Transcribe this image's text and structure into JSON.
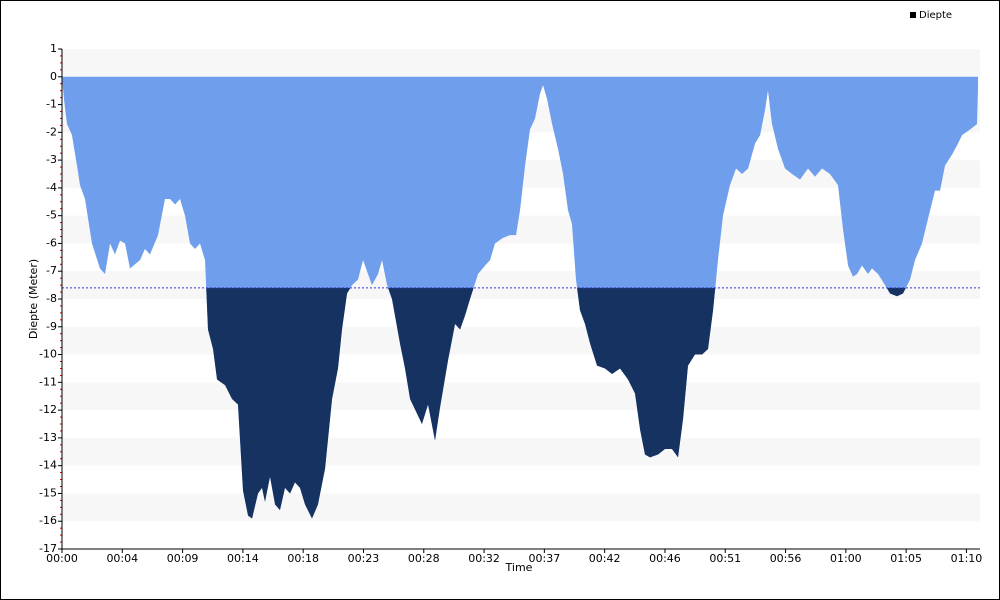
{
  "chart_data": {
    "type": "area",
    "x_label": "Time",
    "y_label": "Diepte (Meter)",
    "x": [
      0,
      0.15,
      0.39,
      0.77,
      1.16,
      1.39,
      1.78,
      2.32,
      2.94,
      3.33,
      3.72,
      4.1,
      4.49,
      4.88,
      5.26,
      6.04,
      6.42,
      6.81,
      7.43,
      7.97,
      8.36,
      8.75,
      9.13,
      9.52,
      9.91,
      10.29,
      10.68,
      11.07,
      11.3,
      11.69,
      12.0,
      12.62,
      13.16,
      13.62,
      14.01,
      14.4,
      14.71,
      15.17,
      15.48,
      15.71,
      16.1,
      16.49,
      16.87,
      17.26,
      17.65,
      18.03,
      18.42,
      18.81,
      19.35,
      19.81,
      20.36,
      20.9,
      21.36,
      21.67,
      22.06,
      22.45,
      22.91,
      23.3,
      23.68,
      23.99,
      24.46,
      24.77,
      25.16,
      25.54,
      26.16,
      26.55,
      26.94,
      27.55,
      27.86,
      28.33,
      28.87,
      29.26,
      29.88,
      30.42,
      30.81,
      31.19,
      31.58,
      32.2,
      32.74,
      33.13,
      33.51,
      34.13,
      34.68,
      35.14,
      35.45,
      35.84,
      36.22,
      36.61,
      37.0,
      37.23,
      37.54,
      37.93,
      38.39,
      38.78,
      39.16,
      39.47,
      39.78,
      40.09,
      40.48,
      40.87,
      41.41,
      42.03,
      42.57,
      43.19,
      43.81,
      44.35,
      44.74,
      45.12,
      45.51,
      46.13,
      46.67,
      47.21,
      47.68,
      48.07,
      48.45,
      48.99,
      49.54,
      50.0,
      50.39,
      50.77,
      51.16,
      51.7,
      52.17,
      52.63,
      53.1,
      53.64,
      54.03,
      54.41,
      54.64,
      54.95,
      55.42,
      55.96,
      56.5,
      57.12,
      57.74,
      58.28,
      58.82,
      59.44,
      60.06,
      60.45,
      60.84,
      61.22,
      61.53,
      61.92,
      62.38,
      62.69,
      63.16,
      63.7,
      64.09,
      64.63,
      65.09,
      65.64,
      66.02,
      66.56,
      67.03,
      67.57,
      67.96,
      68.34,
      68.89,
      69.35,
      69.66,
      70.28,
      70.82,
      70.9
    ],
    "series": [
      {
        "name": "Diepte",
        "color": "#6f9fec",
        "below_color": "#163260",
        "legend_color": "#000000",
        "values": [
          0,
          -0.8,
          -1.7,
          -2.1,
          -3.2,
          -3.9,
          -4.4,
          -6.0,
          -6.9,
          -7.1,
          -6.0,
          -6.4,
          -5.9,
          -6.0,
          -6.9,
          -6.6,
          -6.2,
          -6.4,
          -5.7,
          -4.4,
          -4.4,
          -4.6,
          -4.4,
          -5.0,
          -6.0,
          -6.2,
          -6.0,
          -6.6,
          -9.1,
          -9.8,
          -10.9,
          -11.1,
          -11.6,
          -11.8,
          -14.9,
          -15.8,
          -15.9,
          -15.0,
          -14.8,
          -15.3,
          -14.4,
          -15.4,
          -15.6,
          -14.8,
          -15.0,
          -14.6,
          -14.8,
          -15.4,
          -15.9,
          -15.4,
          -14.1,
          -11.6,
          -10.5,
          -9.1,
          -7.8,
          -7.5,
          -7.3,
          -6.6,
          -7.1,
          -7.5,
          -7.1,
          -6.6,
          -7.5,
          -8.0,
          -9.6,
          -10.5,
          -11.6,
          -12.2,
          -12.5,
          -11.8,
          -13.1,
          -11.9,
          -10.2,
          -8.9,
          -9.1,
          -8.6,
          -8.0,
          -7.1,
          -6.8,
          -6.6,
          -6.0,
          -5.8,
          -5.7,
          -5.7,
          -4.8,
          -3.2,
          -1.9,
          -1.5,
          -0.6,
          -0.3,
          -0.8,
          -1.7,
          -2.6,
          -3.5,
          -4.8,
          -5.3,
          -7.3,
          -8.4,
          -8.9,
          -9.6,
          -10.4,
          -10.5,
          -10.7,
          -10.5,
          -10.9,
          -11.4,
          -12.7,
          -13.6,
          -13.7,
          -13.6,
          -13.4,
          -13.4,
          -13.7,
          -12.3,
          -10.4,
          -10.0,
          -10.0,
          -9.8,
          -8.4,
          -6.6,
          -5.0,
          -3.9,
          -3.3,
          -3.5,
          -3.3,
          -2.4,
          -2.1,
          -1.2,
          -0.5,
          -1.7,
          -2.6,
          -3.3,
          -3.5,
          -3.7,
          -3.3,
          -3.6,
          -3.3,
          -3.5,
          -3.9,
          -5.5,
          -6.8,
          -7.2,
          -7.1,
          -6.8,
          -7.1,
          -6.9,
          -7.1,
          -7.5,
          -7.8,
          -7.9,
          -7.8,
          -7.3,
          -6.6,
          -6.0,
          -5.1,
          -4.1,
          -4.1,
          -3.2,
          -2.8,
          -2.4,
          -2.1,
          -1.9,
          -1.7,
          -0.4
        ]
      }
    ],
    "threshold": -7.6,
    "xlim": [
      0,
      71.05
    ],
    "xticks": [
      {
        "value": 0,
        "label": "00:00"
      },
      {
        "value": 4.667,
        "label": "00:04"
      },
      {
        "value": 9.333,
        "label": "00:09"
      },
      {
        "value": 14,
        "label": "00:14"
      },
      {
        "value": 18.667,
        "label": "00:18"
      },
      {
        "value": 23.333,
        "label": "00:23"
      },
      {
        "value": 28,
        "label": "00:28"
      },
      {
        "value": 32.667,
        "label": "00:32"
      },
      {
        "value": 37.333,
        "label": "00:37"
      },
      {
        "value": 42,
        "label": "00:42"
      },
      {
        "value": 46.667,
        "label": "00:46"
      },
      {
        "value": 51.333,
        "label": "00:51"
      },
      {
        "value": 56,
        "label": "00:56"
      },
      {
        "value": 60.667,
        "label": "01:00"
      },
      {
        "value": 65.333,
        "label": "01:05"
      },
      {
        "value": 70,
        "label": "01:10"
      }
    ],
    "ylim": [
      -17,
      1
    ],
    "yticks": [
      1,
      0,
      -1,
      -2,
      -3,
      -4,
      -5,
      -6,
      -7,
      -8,
      -9,
      -10,
      -11,
      -12,
      -13,
      -14,
      -15,
      -16,
      -17
    ],
    "banded_grid": true,
    "legend": "top-right"
  }
}
